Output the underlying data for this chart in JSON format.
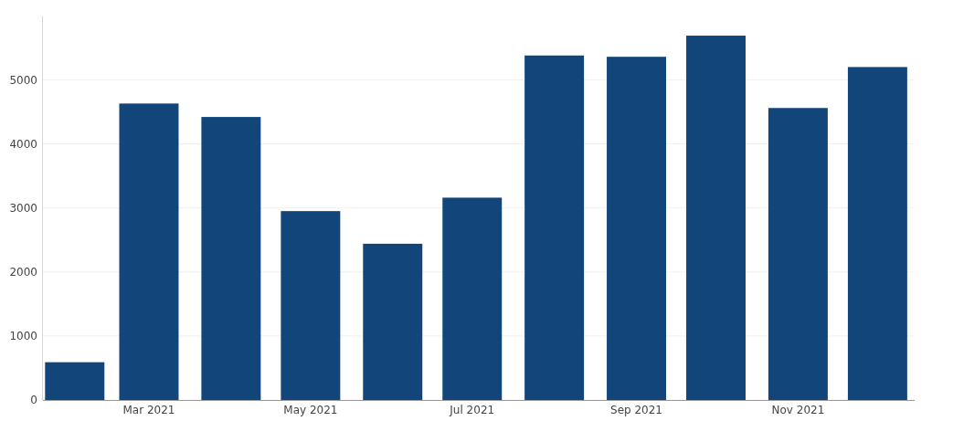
{
  "chart_data": {
    "type": "bar",
    "x": [
      "2021-02",
      "2021-03",
      "2021-04",
      "2021-05",
      "2021-06",
      "2021-07",
      "2021-08",
      "2021-09",
      "2021-10",
      "2021-11",
      "2021-12"
    ],
    "values": [
      590,
      4630,
      4420,
      2950,
      2440,
      3160,
      5380,
      5360,
      5690,
      4560,
      5200
    ],
    "color": "#12457a",
    "xlim": [
      "2021-01-20",
      "2021-12-15"
    ],
    "xticks": [
      {
        "value": "2021-03",
        "label": "Mar 2021"
      },
      {
        "value": "2021-05",
        "label": "May 2021"
      },
      {
        "value": "2021-07",
        "label": "Jul 2021"
      },
      {
        "value": "2021-09",
        "label": "Sep 2021"
      },
      {
        "value": "2021-11",
        "label": "Nov 2021"
      }
    ],
    "ylim": [
      0,
      5990
    ],
    "yticks": [
      0,
      1000,
      2000,
      3000,
      4000,
      5000
    ],
    "grid": "y"
  }
}
